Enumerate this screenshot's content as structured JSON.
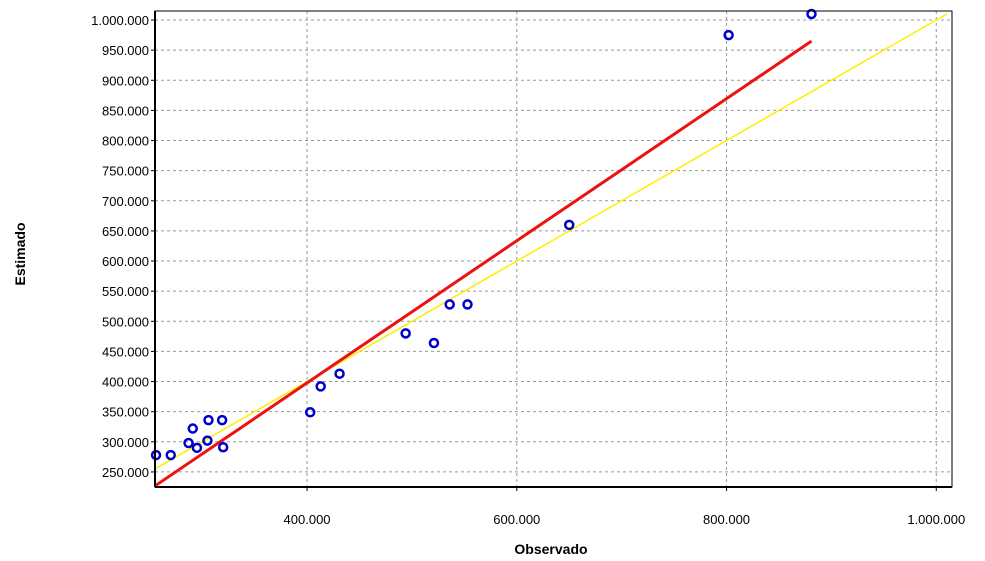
{
  "chart_data": {
    "type": "scatter",
    "xlabel": "Observado",
    "ylabel": "Estimado",
    "xlim": [
      255000,
      1015000
    ],
    "ylim": [
      225000,
      1015000
    ],
    "xticks": [
      {
        "value": 400000,
        "label": "400.000"
      },
      {
        "value": 600000,
        "label": "600.000"
      },
      {
        "value": 800000,
        "label": "800.000"
      },
      {
        "value": 1000000,
        "label": "1.000.000"
      }
    ],
    "yticks": [
      {
        "value": 250000,
        "label": "250.000"
      },
      {
        "value": 300000,
        "label": "300.000"
      },
      {
        "value": 350000,
        "label": "350.000"
      },
      {
        "value": 400000,
        "label": "400.000"
      },
      {
        "value": 450000,
        "label": "450.000"
      },
      {
        "value": 500000,
        "label": "500.000"
      },
      {
        "value": 550000,
        "label": "550.000"
      },
      {
        "value": 600000,
        "label": "600.000"
      },
      {
        "value": 650000,
        "label": "650.000"
      },
      {
        "value": 700000,
        "label": "700.000"
      },
      {
        "value": 750000,
        "label": "750.000"
      },
      {
        "value": 800000,
        "label": "800.000"
      },
      {
        "value": 850000,
        "label": "850.000"
      },
      {
        "value": 900000,
        "label": "900.000"
      },
      {
        "value": 950000,
        "label": "950.000"
      },
      {
        "value": 1000000,
        "label": "1.000.000"
      }
    ],
    "grid": true,
    "points": {
      "color": "#0000cc",
      "x": [
        256000,
        270000,
        287000,
        291000,
        295000,
        305000,
        306000,
        319000,
        320000,
        403000,
        413000,
        431000,
        494000,
        521000,
        536000,
        553000,
        650000,
        802000,
        881000
      ],
      "y": [
        278000,
        278000,
        298000,
        322000,
        290000,
        302000,
        336000,
        336000,
        291000,
        349000,
        392000,
        413000,
        480000,
        464000,
        528000,
        528000,
        660000,
        975000,
        1010000
      ]
    },
    "regression_line": {
      "color": "#ee1111",
      "x": [
        256000,
        881000
      ],
      "y": [
        228000,
        965000
      ]
    },
    "reference_line": {
      "color": "#ffee00",
      "x": [
        256000,
        1010000
      ],
      "y": [
        256000,
        1010000
      ]
    }
  }
}
